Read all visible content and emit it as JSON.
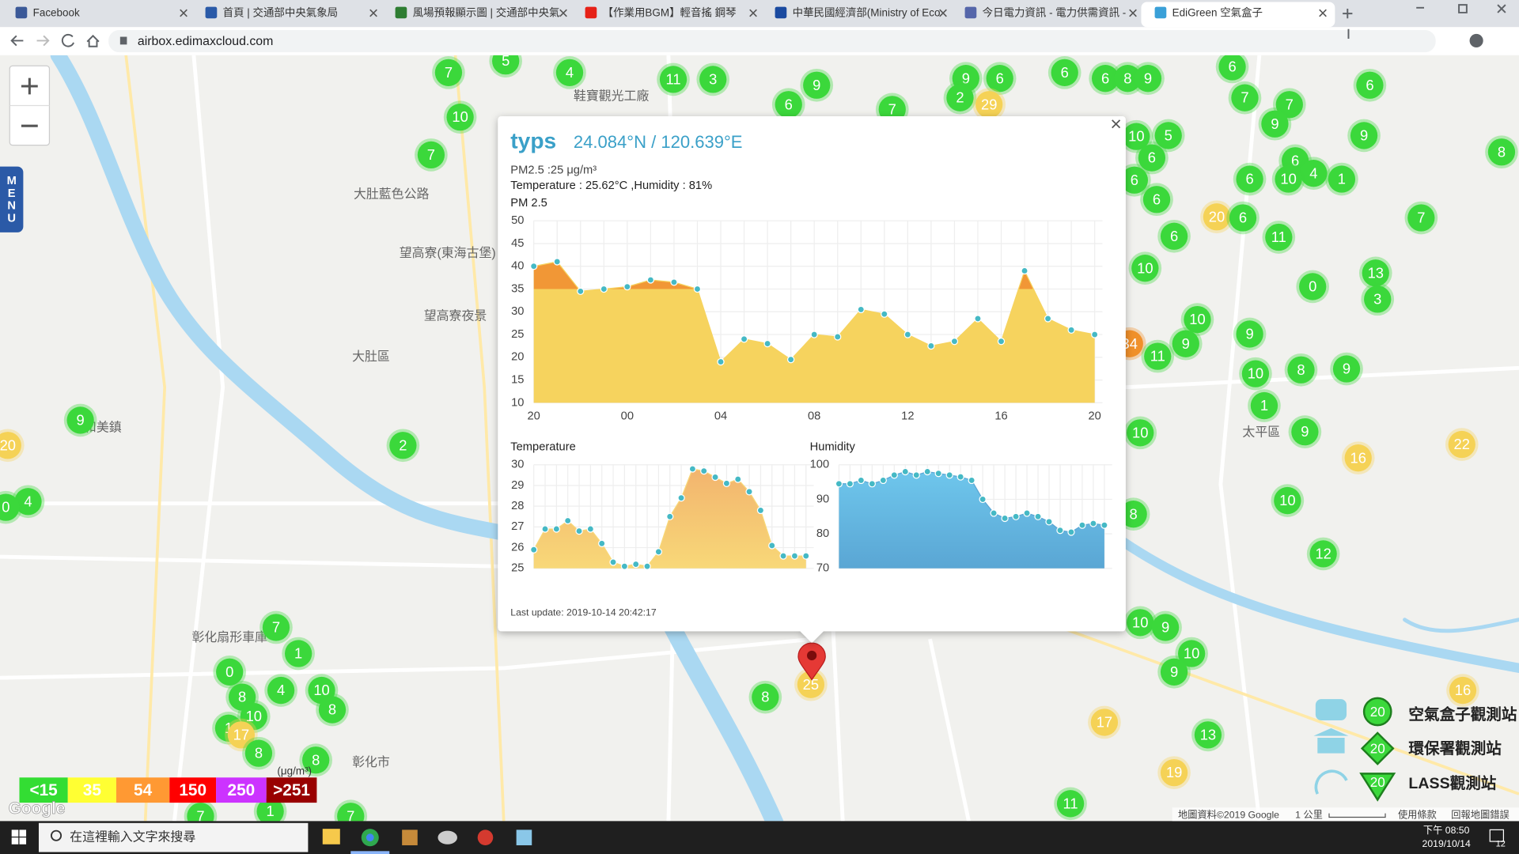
{
  "browser": {
    "tabs": [
      "Facebook",
      "首頁 | 交通部中央氣象局",
      "風場預報顯示圖 | 交通部中央氣",
      "【作業用BGM】輕音搖 鋼琴",
      "中華民國經濟部(Ministry of Eco",
      "今日電力資訊 - 電力供需資訊 -",
      "EdiGreen 空氣盒子"
    ],
    "url": "airbox.edimaxcloud.com"
  },
  "map": {
    "menu": "MENU",
    "places": [
      "大肚區",
      "彰化市",
      "太平區",
      "大肚藍色公路",
      "望高寮(東海古堡)",
      "望高寮夜景",
      "和美鎮",
      "鞋寶觀光工廠",
      "彰化扇形車庫"
    ],
    "markers": [
      {
        "value": 7,
        "color": "#3bd83b"
      },
      {
        "value": 5,
        "color": "#3bd83b"
      },
      {
        "value": 4,
        "color": "#3bd83b"
      },
      {
        "value": 10,
        "color": "#3bd83b"
      },
      {
        "value": 7,
        "color": "#3bd83b"
      },
      {
        "value": 11,
        "color": "#3bd83b"
      },
      {
        "value": 3,
        "color": "#3bd83b"
      },
      {
        "value": 9,
        "color": "#3bd83b"
      },
      {
        "value": 6,
        "color": "#3bd83b"
      },
      {
        "value": 7,
        "color": "#3bd83b"
      },
      {
        "value": 9,
        "color": "#3bd83b"
      },
      {
        "value": 6,
        "color": "#3bd83b"
      },
      {
        "value": 2,
        "color": "#3bd83b"
      },
      {
        "value": 29,
        "color": "#f5d256"
      },
      {
        "value": 6,
        "color": "#3bd83b"
      },
      {
        "value": 6,
        "color": "#3bd83b"
      },
      {
        "value": 8,
        "color": "#3bd83b"
      },
      {
        "value": 9,
        "color": "#3bd83b"
      },
      {
        "value": 6,
        "color": "#3bd83b"
      },
      {
        "value": 7,
        "color": "#3bd83b"
      },
      {
        "value": 7,
        "color": "#3bd83b"
      },
      {
        "value": 6,
        "color": "#3bd83b"
      },
      {
        "value": 9,
        "color": "#3bd83b"
      },
      {
        "value": 9,
        "color": "#3bd83b"
      },
      {
        "value": 8,
        "color": "#3bd83b"
      },
      {
        "value": 5,
        "color": "#3bd83b"
      },
      {
        "value": 10,
        "color": "#3bd83b"
      },
      {
        "value": 6,
        "color": "#3bd83b"
      },
      {
        "value": 6,
        "color": "#3bd83b"
      },
      {
        "value": 4,
        "color": "#3bd83b"
      },
      {
        "value": 1,
        "color": "#3bd83b"
      },
      {
        "value": 10,
        "color": "#3bd83b"
      },
      {
        "value": 6,
        "color": "#3bd83b"
      },
      {
        "value": 6,
        "color": "#3bd83b"
      },
      {
        "value": 6,
        "color": "#3bd83b"
      },
      {
        "value": 20,
        "color": "#f5d256"
      },
      {
        "value": 6,
        "color": "#3bd83b"
      },
      {
        "value": 7,
        "color": "#3bd83b"
      },
      {
        "value": 6,
        "color": "#3bd83b"
      },
      {
        "value": 11,
        "color": "#3bd83b"
      },
      {
        "value": 10,
        "color": "#3bd83b"
      },
      {
        "value": 13,
        "color": "#3bd83b"
      },
      {
        "value": 0,
        "color": "#3bd83b"
      },
      {
        "value": 3,
        "color": "#3bd83b"
      },
      {
        "value": 10,
        "color": "#3bd83b"
      },
      {
        "value": 9,
        "color": "#3bd83b"
      },
      {
        "value": 9,
        "color": "#3bd83b"
      },
      {
        "value": 34,
        "color": "#f0902a"
      },
      {
        "value": 11,
        "color": "#3bd83b"
      },
      {
        "value": 9,
        "color": "#3bd83b"
      },
      {
        "value": 10,
        "color": "#3bd83b"
      },
      {
        "value": 8,
        "color": "#3bd83b"
      },
      {
        "value": 1,
        "color": "#3bd83b"
      },
      {
        "value": 9,
        "color": "#3bd83b"
      },
      {
        "value": 10,
        "color": "#3bd83b"
      },
      {
        "value": 16,
        "color": "#f5d256"
      },
      {
        "value": 22,
        "color": "#f5d256"
      },
      {
        "value": 10,
        "color": "#3bd83b"
      },
      {
        "value": 8,
        "color": "#3bd83b"
      },
      {
        "value": 12,
        "color": "#3bd83b"
      },
      {
        "value": 10,
        "color": "#3bd83b"
      },
      {
        "value": 9,
        "color": "#3bd83b"
      },
      {
        "value": 10,
        "color": "#3bd83b"
      },
      {
        "value": 9,
        "color": "#3bd83b"
      },
      {
        "value": 17,
        "color": "#f5d256"
      },
      {
        "value": 13,
        "color": "#3bd83b"
      },
      {
        "value": 19,
        "color": "#f5d256"
      },
      {
        "value": 11,
        "color": "#3bd83b"
      },
      {
        "value": 16,
        "color": "#f5d256"
      },
      {
        "value": 8,
        "color": "#3bd83b"
      },
      {
        "value": 25,
        "color": "#f5d256"
      },
      {
        "value": 2,
        "color": "#3bd83b"
      },
      {
        "value": 9,
        "color": "#3bd83b"
      },
      {
        "value": 20,
        "color": "#f5d256"
      },
      {
        "value": 4,
        "color": "#3bd83b"
      },
      {
        "value": 0,
        "color": "#3bd83b"
      },
      {
        "value": 7,
        "color": "#3bd83b"
      },
      {
        "value": 1,
        "color": "#3bd83b"
      },
      {
        "value": 0,
        "color": "#3bd83b"
      },
      {
        "value": 4,
        "color": "#3bd83b"
      },
      {
        "value": 10,
        "color": "#3bd83b"
      },
      {
        "value": 8,
        "color": "#3bd83b"
      },
      {
        "value": 8,
        "color": "#3bd83b"
      },
      {
        "value": 10,
        "color": "#3bd83b"
      },
      {
        "value": 1,
        "color": "#3bd83b"
      },
      {
        "value": 17,
        "color": "#f5d256"
      },
      {
        "value": 8,
        "color": "#3bd83b"
      },
      {
        "value": 8,
        "color": "#3bd83b"
      },
      {
        "value": 7,
        "color": "#3bd83b"
      },
      {
        "value": 1,
        "color": "#3bd83b"
      },
      {
        "value": 7,
        "color": "#3bd83b"
      }
    ],
    "legend": {
      "levels": [
        "<15",
        "35",
        "54",
        "150",
        "250",
        ">251"
      ],
      "colors": [
        "#33dd33",
        "#ffff33",
        "#ff9933",
        "#ff0000",
        "#cc33ff",
        "#990000"
      ],
      "unit": "(μg/m³)",
      "sample": "20",
      "stations": [
        "空氣盒子觀測站",
        "環保署觀測站",
        "LASS觀測站"
      ]
    },
    "google": "Google",
    "attribution": "地圖資料©2019 Google",
    "scale": "1 公里",
    "terms": "使用條款",
    "report": "回報地圖錯誤"
  },
  "popup": {
    "name": "typs",
    "coords": "24.084°N / 120.639°E",
    "pm": "PM2.5 :25 μg/m³",
    "env": "Temperature : 25.62°C ,Humidity : 81%",
    "updated": "Last update: 2019-10-14 20:42:17"
  },
  "chart_data": [
    {
      "type": "area",
      "title": "PM 2.5",
      "categories": [
        "20",
        null,
        null,
        null,
        "00",
        null,
        null,
        null,
        "04",
        null,
        null,
        null,
        "08",
        null,
        null,
        null,
        "12",
        null,
        null,
        null,
        "16",
        null,
        null,
        null,
        "20"
      ],
      "values": [
        40,
        41,
        34.5,
        35,
        35.5,
        37,
        36.5,
        35,
        19,
        24,
        23,
        19.5,
        25,
        24.5,
        30.5,
        29.5,
        25,
        22.5,
        23.5,
        28.5,
        23.5,
        39,
        28.5,
        26,
        25
      ],
      "ylim": [
        10,
        50
      ],
      "yticks": [
        10,
        15,
        20,
        25,
        30,
        35,
        40,
        45,
        50
      ],
      "color": "#f6d35e",
      "highlight_color": "#f19736",
      "point_color": "#45b9c5",
      "grid": true
    },
    {
      "type": "area",
      "title": "Temperature",
      "categories": [
        null,
        null,
        null,
        null,
        null,
        null,
        null,
        null,
        null,
        null,
        null,
        null,
        null,
        null,
        null,
        null,
        null,
        null,
        null,
        null,
        null,
        null,
        null,
        null,
        null
      ],
      "values": [
        25.9,
        26.9,
        26.9,
        27.3,
        26.8,
        26.9,
        26.2,
        25.3,
        25.1,
        25.2,
        25.1,
        25.8,
        27.5,
        28.4,
        29.8,
        29.7,
        29.4,
        29.1,
        29.3,
        28.7,
        27.8,
        26.1,
        25.6,
        25.6,
        25.6
      ],
      "ylim": [
        25,
        30
      ],
      "yticks": [
        25,
        26,
        27,
        28,
        29,
        30
      ],
      "color": "#f2b46e",
      "color2": "#f8d878",
      "point_color": "#45b9c5",
      "grid": true
    },
    {
      "type": "area",
      "title": "Humidity",
      "categories": [
        null,
        null,
        null,
        null,
        null,
        null,
        null,
        null,
        null,
        null,
        null,
        null,
        null,
        null,
        null,
        null,
        null,
        null,
        null,
        null,
        null,
        null,
        null,
        null,
        null
      ],
      "values": [
        94.5,
        94.5,
        95.5,
        94.5,
        95.5,
        97,
        98,
        97,
        98,
        97.5,
        97,
        96.5,
        95.5,
        90,
        86,
        84.5,
        85,
        86,
        85,
        83.5,
        81,
        80.5,
        82.5,
        83,
        82.5
      ],
      "ylim": [
        70,
        100
      ],
      "yticks": [
        70,
        80,
        90,
        100
      ],
      "color": "#6ec6ec",
      "color2": "#5aa6d4",
      "point_color": "#45b9c5",
      "grid": true
    }
  ],
  "taskbar": {
    "search": "在這裡輸入文字來搜尋",
    "time": "下午 08:50",
    "date": "2019/10/14",
    "badge": "12"
  }
}
